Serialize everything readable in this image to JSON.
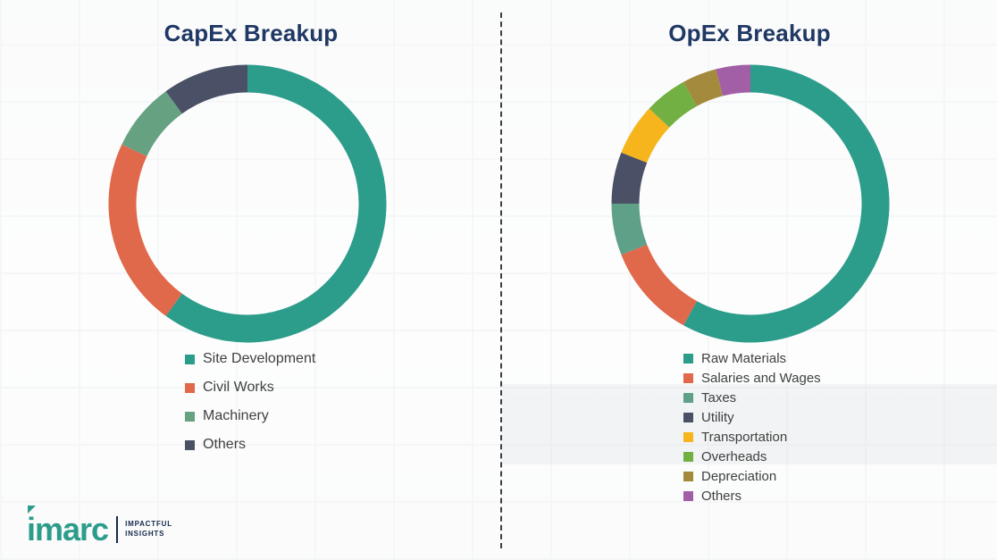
{
  "page": {
    "separator_style": "dashed-vertical",
    "background": "#ffffff"
  },
  "logo": {
    "brand": "imarc",
    "brand_color": "#2C9C8B",
    "tagline_line1": "IMPACTFUL",
    "tagline_line2": "INSIGHTS"
  },
  "colors": {
    "title": "#1F3864",
    "legend_text": "#404040"
  },
  "chart_data": [
    {
      "type": "pie",
      "variant": "donut",
      "title": "CapEx Breakup",
      "legend_position": "bottom-left",
      "start_angle_deg": 0,
      "direction": "clockwise",
      "segments": [
        {
          "label": "Site Development",
          "value": 60,
          "color": "#2C9C8B"
        },
        {
          "label": "Civil Works",
          "value": 22,
          "color": "#E0684B"
        },
        {
          "label": "Machinery",
          "value": 8,
          "color": "#66A182"
        },
        {
          "label": "Others",
          "value": 10,
          "color": "#4A5167"
        }
      ]
    },
    {
      "type": "pie",
      "variant": "donut",
      "title": "OpEx Breakup",
      "legend_position": "bottom-left",
      "start_angle_deg": 0,
      "direction": "clockwise",
      "segments": [
        {
          "label": "Raw Materials",
          "value": 58,
          "color": "#2C9C8B"
        },
        {
          "label": "Salaries and Wages",
          "value": 11,
          "color": "#E0684B"
        },
        {
          "label": "Taxes",
          "value": 6,
          "color": "#5FA088"
        },
        {
          "label": "Utility",
          "value": 6,
          "color": "#4A5167"
        },
        {
          "label": "Transportation",
          "value": 6,
          "color": "#F6B51C"
        },
        {
          "label": "Overheads",
          "value": 5,
          "color": "#72B043"
        },
        {
          "label": "Depreciation",
          "value": 4,
          "color": "#A48A3C"
        },
        {
          "label": "Others",
          "value": 4,
          "color": "#A35FA5"
        }
      ]
    }
  ]
}
